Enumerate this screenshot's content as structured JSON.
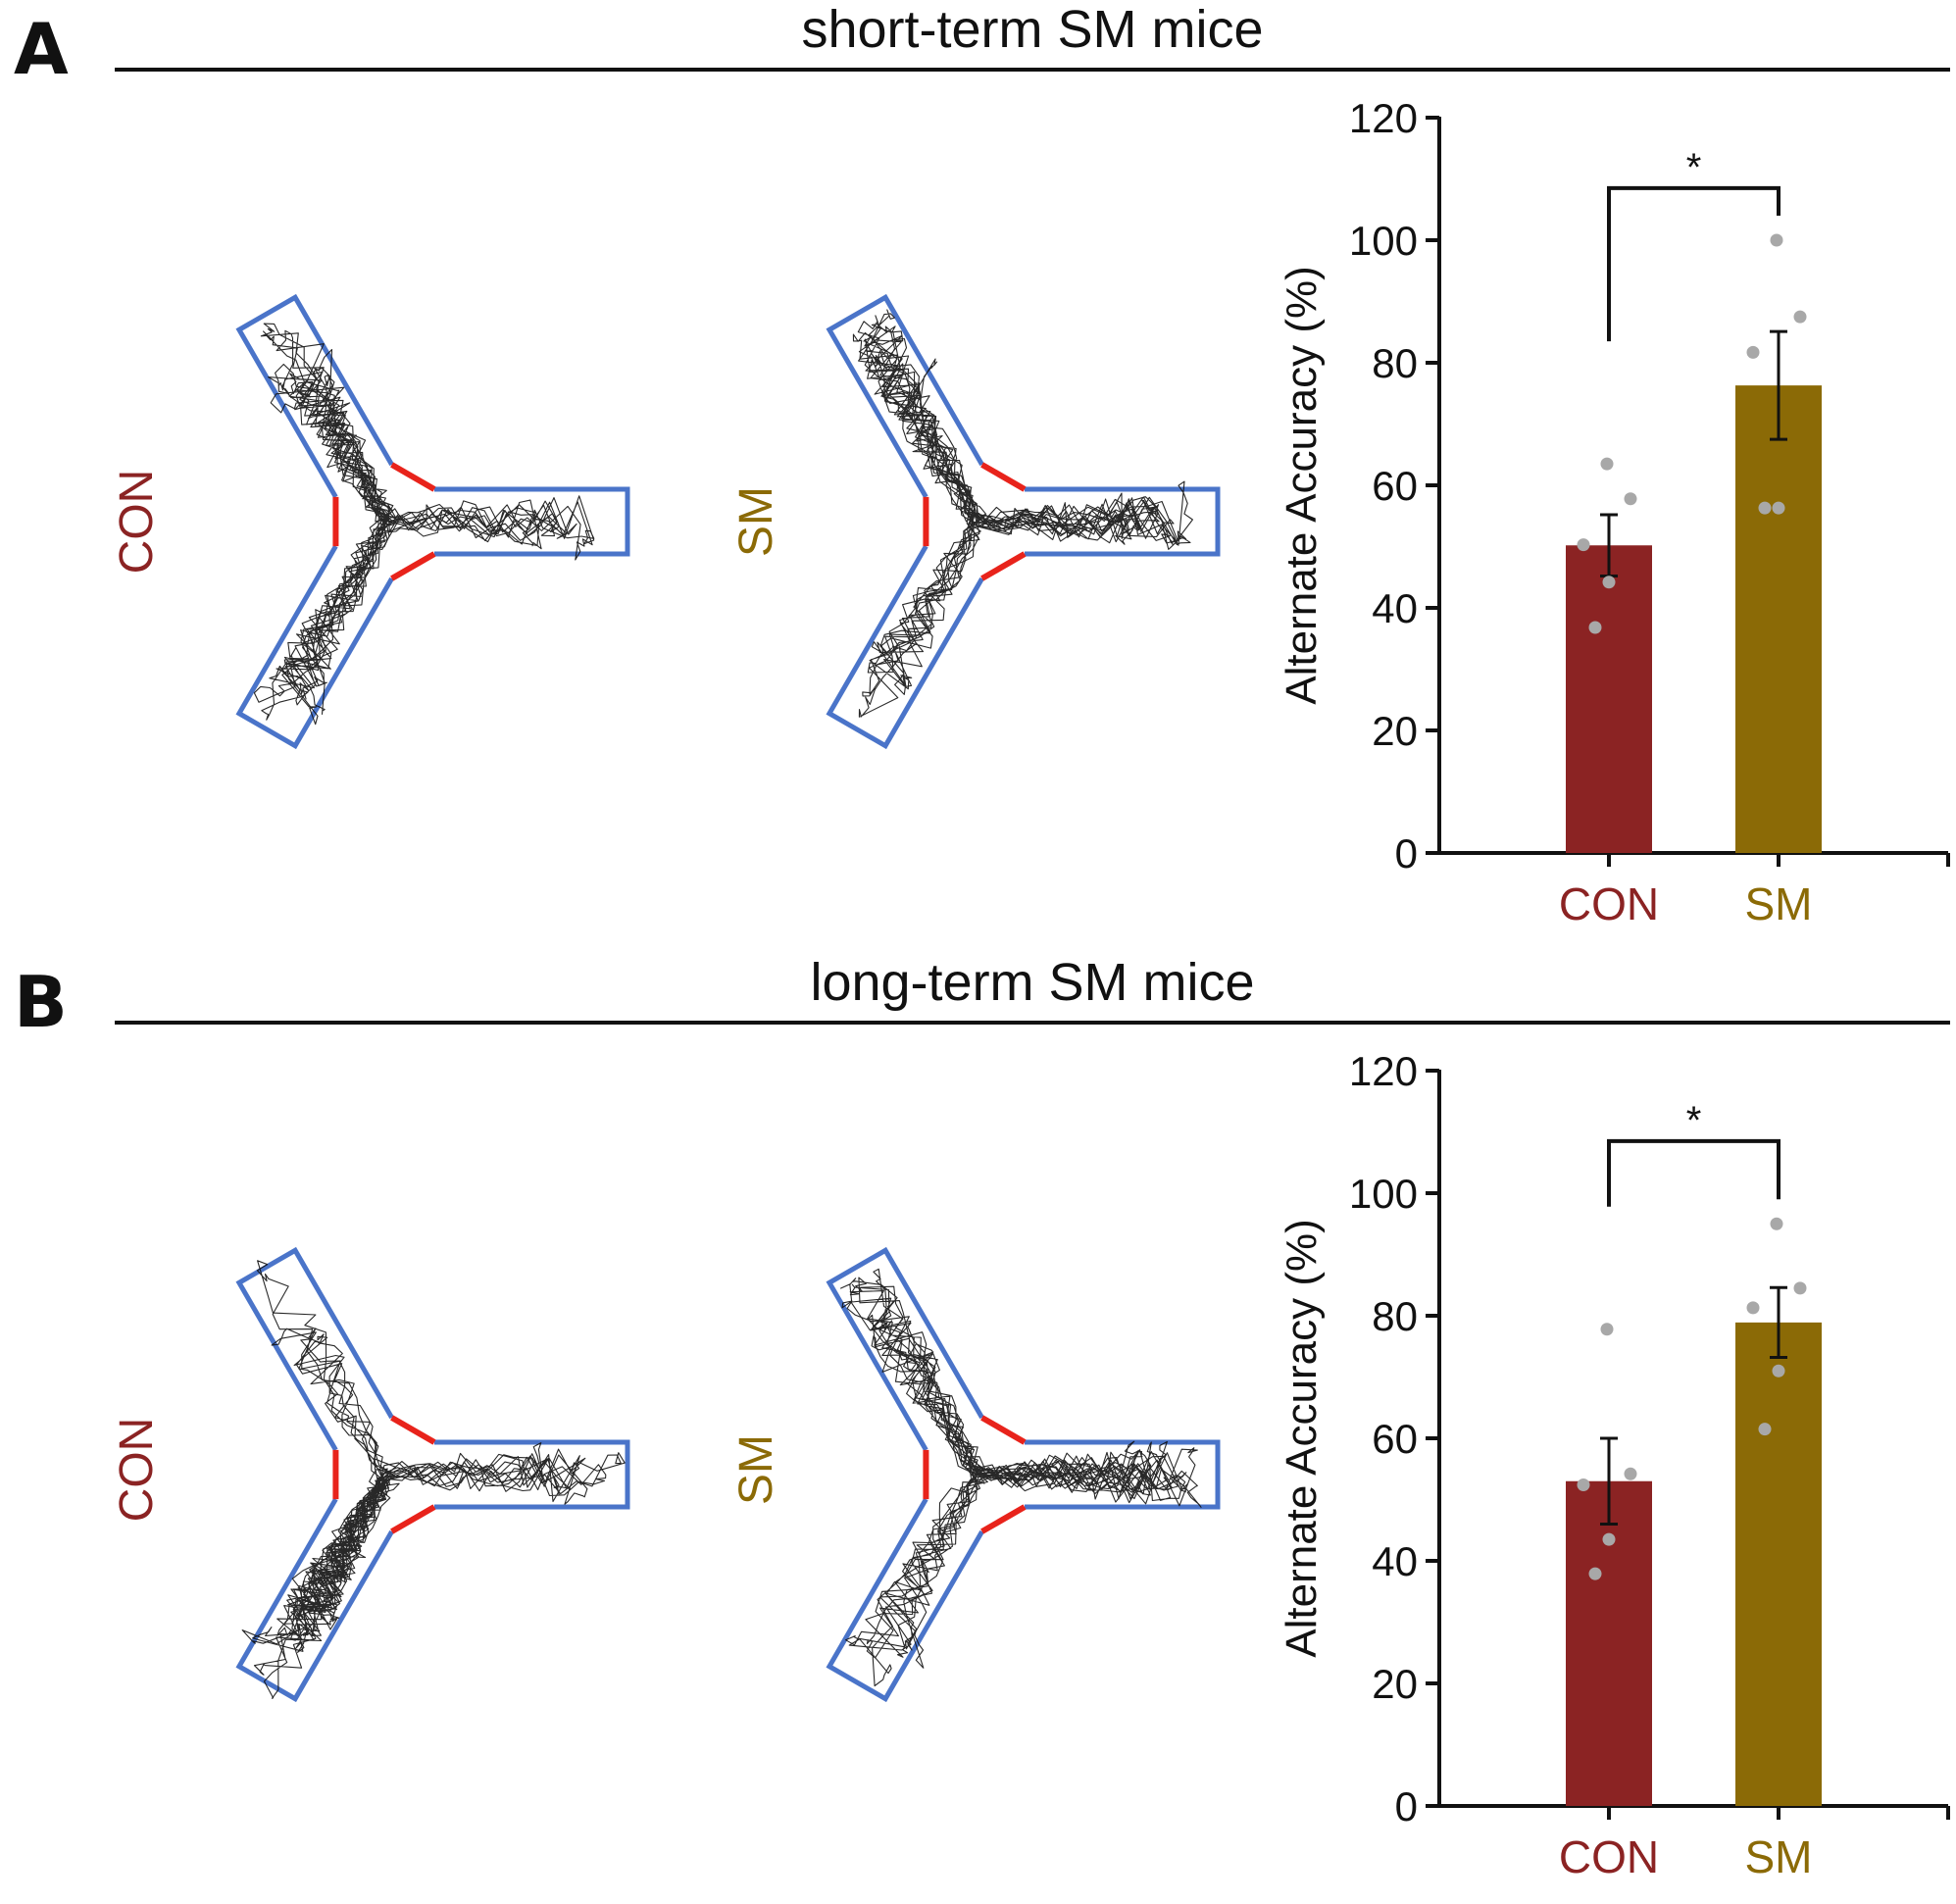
{
  "colors": {
    "con": "#8b2323",
    "sm": "#8b6a06",
    "arena_outline": "#4a74c9",
    "arena_door": "#e8231b",
    "point": "#a8a8a8",
    "track": "#111111"
  },
  "panels": [
    {
      "letter": "A",
      "title": "short-term SM mice",
      "con_label": "CON",
      "sm_label": "SM",
      "con_track_icon": "y-maze-track-icon",
      "sm_track_icon": "y-maze-track-icon"
    },
    {
      "letter": "B",
      "title": "long-term SM mice",
      "con_label": "CON",
      "sm_label": "SM",
      "con_track_icon": "y-maze-track-icon",
      "sm_track_icon": "y-maze-track-icon"
    }
  ],
  "chart_data": [
    {
      "type": "bar",
      "title": "short-term SM mice",
      "categories": [
        "CON",
        "SM"
      ],
      "values": [
        50.2,
        76.3
      ],
      "sem": [
        5.0,
        8.8
      ],
      "points": [
        [
          63.5,
          57.8,
          50.3,
          44.2,
          36.8
        ],
        [
          100,
          87.5,
          81.7,
          56.3,
          56.3
        ]
      ],
      "significance": "*",
      "xlabel": "",
      "ylabel": "Alternate Accuracy (%)",
      "ylim": [
        0,
        120
      ],
      "yticks": [
        "0",
        "20",
        "40",
        "60",
        "80",
        "100",
        "120"
      ],
      "grid": false
    },
    {
      "type": "bar",
      "title": "long-term SM mice",
      "categories": [
        "CON",
        "SM"
      ],
      "values": [
        53.0,
        78.9
      ],
      "sem": [
        7.0,
        5.7
      ],
      "points": [
        [
          77.8,
          54.2,
          52.4,
          43.5,
          37.9
        ],
        [
          95.0,
          84.5,
          81.3,
          71.0,
          61.5
        ]
      ],
      "significance": "*",
      "xlabel": "",
      "ylabel": "Alternate Accuracy (%)",
      "ylim": [
        0,
        120
      ],
      "yticks": [
        "0",
        "20",
        "40",
        "60",
        "80",
        "100",
        "120"
      ],
      "grid": false
    }
  ]
}
